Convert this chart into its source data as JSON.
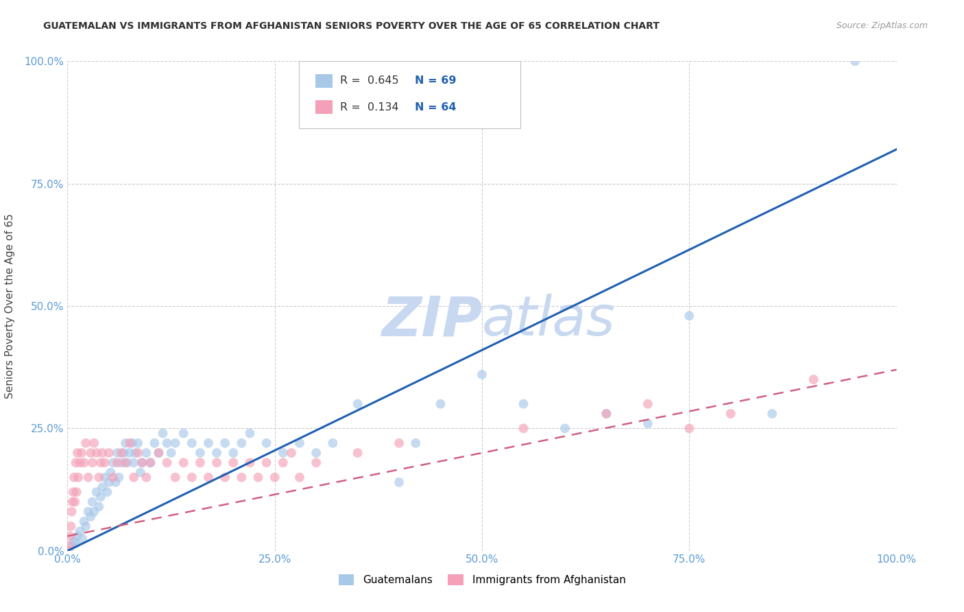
{
  "title": "GUATEMALAN VS IMMIGRANTS FROM AFGHANISTAN SENIORS POVERTY OVER THE AGE OF 65 CORRELATION CHART",
  "source": "Source: ZipAtlas.com",
  "ylabel": "Seniors Poverty Over the Age of 65",
  "r_guatemalan": 0.645,
  "n_guatemalan": 69,
  "r_afghan": 0.134,
  "n_afghan": 64,
  "blue_color": "#a8c8e8",
  "blue_line_color": "#2060b0",
  "pink_color": "#f4a0b8",
  "pink_line_color": "#d06080",
  "title_color": "#303030",
  "axis_tick_color": "#5b9bd5",
  "watermark_color": "#c8d8f0",
  "background_color": "#ffffff",
  "grid_color": "#c8c8c8",
  "guatemalan_x": [
    0.5,
    0.8,
    1.0,
    1.2,
    1.5,
    1.8,
    2.0,
    2.2,
    2.5,
    2.8,
    3.0,
    3.2,
    3.5,
    3.8,
    4.0,
    4.2,
    4.5,
    4.8,
    5.0,
    5.2,
    5.5,
    5.8,
    6.0,
    6.2,
    6.5,
    6.8,
    7.0,
    7.2,
    7.5,
    7.8,
    8.0,
    8.2,
    8.5,
    8.8,
    9.0,
    9.5,
    10.0,
    10.5,
    11.0,
    11.5,
    12.0,
    12.5,
    13.0,
    14.0,
    15.0,
    16.0,
    17.0,
    18.0,
    19.0,
    20.0,
    21.0,
    22.0,
    24.0,
    26.0,
    28.0,
    30.0,
    32.0,
    35.0,
    40.0,
    42.0,
    45.0,
    50.0,
    55.0,
    60.0,
    65.0,
    70.0,
    75.0,
    85.0,
    95.0
  ],
  "guatemalan_y": [
    1.0,
    2.0,
    1.5,
    3.0,
    4.0,
    2.5,
    6.0,
    5.0,
    8.0,
    7.0,
    10.0,
    8.0,
    12.0,
    9.0,
    11.0,
    13.0,
    15.0,
    12.0,
    14.0,
    16.0,
    18.0,
    14.0,
    20.0,
    15.0,
    18.0,
    20.0,
    22.0,
    18.0,
    20.0,
    22.0,
    18.0,
    20.0,
    22.0,
    16.0,
    18.0,
    20.0,
    18.0,
    22.0,
    20.0,
    24.0,
    22.0,
    20.0,
    22.0,
    24.0,
    22.0,
    20.0,
    22.0,
    20.0,
    22.0,
    20.0,
    22.0,
    24.0,
    22.0,
    20.0,
    22.0,
    20.0,
    22.0,
    30.0,
    14.0,
    22.0,
    30.0,
    36.0,
    30.0,
    25.0,
    28.0,
    26.0,
    48.0,
    28.0,
    100.0
  ],
  "afghan_x": [
    0.1,
    0.2,
    0.3,
    0.4,
    0.5,
    0.6,
    0.7,
    0.8,
    0.9,
    1.0,
    1.1,
    1.2,
    1.3,
    1.5,
    1.7,
    2.0,
    2.2,
    2.5,
    2.8,
    3.0,
    3.2,
    3.5,
    3.8,
    4.0,
    4.2,
    4.5,
    5.0,
    5.5,
    6.0,
    6.5,
    7.0,
    7.5,
    8.0,
    8.5,
    9.0,
    9.5,
    10.0,
    11.0,
    12.0,
    13.0,
    14.0,
    15.0,
    16.0,
    17.0,
    18.0,
    19.0,
    20.0,
    21.0,
    22.0,
    23.0,
    24.0,
    25.0,
    26.0,
    27.0,
    28.0,
    30.0,
    35.0,
    40.0,
    55.0,
    65.0,
    70.0,
    75.0,
    80.0,
    90.0
  ],
  "afghan_y": [
    0.0,
    1.0,
    3.0,
    5.0,
    8.0,
    10.0,
    12.0,
    15.0,
    10.0,
    18.0,
    12.0,
    20.0,
    15.0,
    18.0,
    20.0,
    18.0,
    22.0,
    15.0,
    20.0,
    18.0,
    22.0,
    20.0,
    15.0,
    18.0,
    20.0,
    18.0,
    20.0,
    15.0,
    18.0,
    20.0,
    18.0,
    22.0,
    15.0,
    20.0,
    18.0,
    15.0,
    18.0,
    20.0,
    18.0,
    15.0,
    18.0,
    15.0,
    18.0,
    15.0,
    18.0,
    15.0,
    18.0,
    15.0,
    18.0,
    15.0,
    18.0,
    15.0,
    18.0,
    20.0,
    15.0,
    18.0,
    20.0,
    22.0,
    25.0,
    28.0,
    30.0,
    25.0,
    28.0,
    35.0
  ],
  "xlim": [
    0,
    100
  ],
  "ylim": [
    0,
    100
  ],
  "xtick_values": [
    0,
    25,
    50,
    75,
    100
  ],
  "ytick_values": [
    0,
    25,
    50,
    75,
    100
  ],
  "xtick_labels": [
    "0.0%",
    "25.0%",
    "50.0%",
    "75.0%",
    "100.0%"
  ],
  "ytick_labels": [
    "0.0%",
    "25.0%",
    "50.0%",
    "75.0%",
    "100.0%"
  ],
  "blue_trend": [
    0,
    0,
    100,
    82
  ],
  "pink_trend": [
    0,
    3,
    100,
    37
  ],
  "marker_size": 100
}
